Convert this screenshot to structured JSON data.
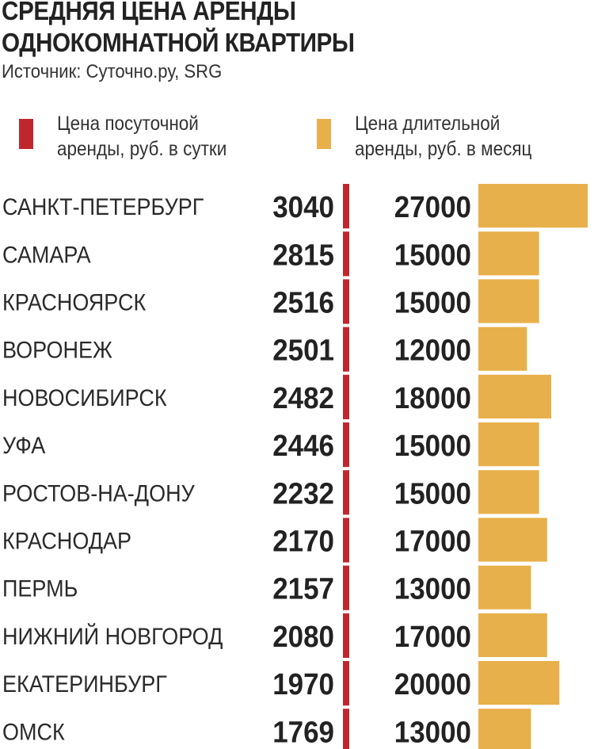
{
  "header": {
    "title_line1": "СРЕДНЯЯ ЦЕНА АРЕНДЫ",
    "title_line2": "ОДНОКОМНАТНОЙ КВАРТИРЫ",
    "source": "Источник: Суточно.ру, SRG"
  },
  "legend": [
    {
      "line1": "Цена посуточной",
      "line2": "аренды, руб. в сутки",
      "color": "#c0272d"
    },
    {
      "line1": "Цена длительной",
      "line2": "аренды, руб. в месяц",
      "color": "#e8b04a"
    }
  ],
  "chart_data": {
    "type": "bar",
    "categories": [
      "САНКТ-ПЕТЕРБУРГ",
      "САМАРА",
      "КРАСНОЯРСК",
      "ВОРОНЕЖ",
      "НОВОСИБИРСК",
      "УФА",
      "РОСТОВ-НА-ДОНУ",
      "КРАСНОДАР",
      "ПЕРМЬ",
      "НИЖНИЙ НОВГОРОД",
      "ЕКАТЕРИНБУРГ",
      "ОМСК"
    ],
    "series": [
      {
        "name": "Цена посуточной аренды, руб. в сутки",
        "values": [
          3040,
          2815,
          2516,
          2501,
          2482,
          2446,
          2232,
          2170,
          2157,
          2080,
          1970,
          1769
        ],
        "color": "#c0272d"
      },
      {
        "name": "Цена длительной аренды, руб. в месяц",
        "values": [
          27000,
          15000,
          15000,
          12000,
          18000,
          15000,
          15000,
          17000,
          13000,
          17000,
          20000,
          13000
        ],
        "color": "#e8b04a"
      }
    ],
    "title": "СРЕДНЯЯ ЦЕНА АРЕНДЫ ОДНОКОМНАТНОЙ КВАРТИРЫ",
    "orientation": "horizontal",
    "grid": false,
    "legend_position": "top"
  }
}
